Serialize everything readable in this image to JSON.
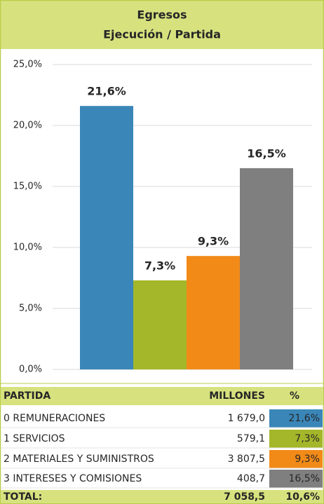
{
  "chart_data": {
    "type": "bar",
    "title": "Egresos",
    "subtitle": "Ejecución / Partida",
    "categories": [
      null,
      null,
      null,
      null
    ],
    "values": [
      21.6,
      7.3,
      9.3,
      16.5
    ],
    "value_labels": [
      "21,6%",
      "7,3%",
      "9,3%",
      "16,5%"
    ],
    "colors": [
      "#3a86b8",
      "#a4b72a",
      "#f28a18",
      "#7f7f7f"
    ],
    "ylim": [
      0,
      25
    ],
    "yticks": [
      {
        "value": 0,
        "label": "0,0%"
      },
      {
        "value": 5,
        "label": "5,0%"
      },
      {
        "value": 10,
        "label": "10,0%"
      },
      {
        "value": 15,
        "label": "15,0%"
      },
      {
        "value": 20,
        "label": "20,0%"
      },
      {
        "value": 25,
        "label": "25,0%"
      }
    ],
    "grid": true
  },
  "table": {
    "header": [
      "PARTIDA",
      "MILLONES",
      "%"
    ],
    "rows": [
      [
        "0 REMUNERACIONES",
        "1 679,0",
        "21,6%"
      ],
      [
        "1 SERVICIOS",
        "579,1",
        "7,3%"
      ],
      [
        "2 MATERIALES Y SUMINISTROS",
        "3 807,5",
        "9,3%"
      ],
      [
        "3 INTERESES Y COMISIONES",
        "408,7",
        "16,5%"
      ]
    ],
    "total": [
      "TOTAL:",
      "7 058,5",
      "10,6%"
    ]
  }
}
